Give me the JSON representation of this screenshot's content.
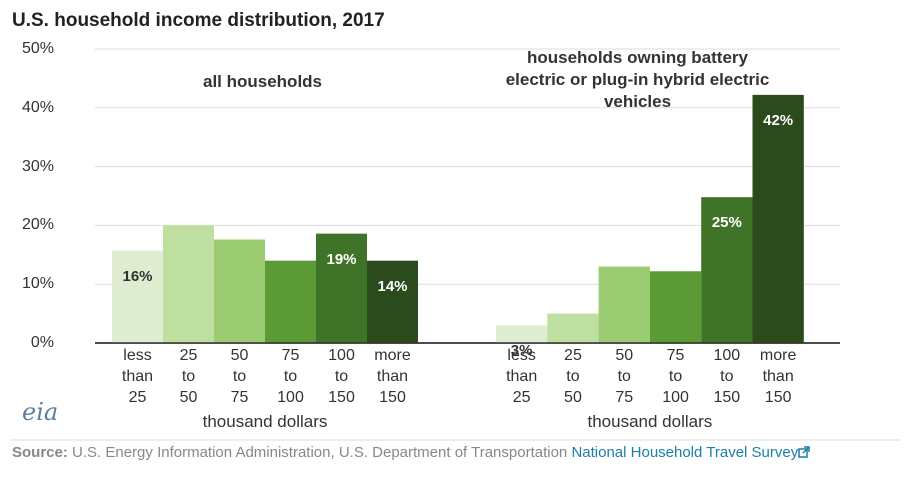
{
  "title": "U.S. household income distribution, 2017",
  "logo": "eia",
  "source": {
    "label": "Source:",
    "text": "U.S. Energy Information Administration, U.S. Department of Transportation",
    "link": "National Household Travel Survey"
  },
  "chart_data": [
    {
      "type": "bar",
      "subtitle": "all households",
      "x_label": "thousand dollars",
      "categories": [
        "less than 25",
        "25 to 50",
        "50 to 75",
        "75 to 100",
        "100 to 150",
        "more than 150"
      ],
      "values": [
        15.7,
        20,
        17.6,
        14,
        18.6,
        14
      ],
      "value_labels": [
        "16%",
        null,
        null,
        null,
        "19%",
        "14%"
      ],
      "colors": [
        "#deedcf",
        "#bfdfa0",
        "#9ccc71",
        "#5b9a35",
        "#3f7327",
        "#2b4b1c"
      ],
      "ylim": [
        0,
        50
      ],
      "yticks": [
        {
          "value": 0,
          "label": "0%"
        },
        {
          "value": 10,
          "label": "10%"
        },
        {
          "value": 20,
          "label": "20%"
        },
        {
          "value": 30,
          "label": "30%"
        },
        {
          "value": 40,
          "label": "40%"
        },
        {
          "value": 50,
          "label": "50%"
        }
      ],
      "grid": true
    },
    {
      "type": "bar",
      "subtitle": "households owning battery electric or plug-in hybrid electric vehicles",
      "x_label": "thousand dollars",
      "categories": [
        "less than 25",
        "25 to 50",
        "50 to 75",
        "75 to 100",
        "100 to 150",
        "more than 150"
      ],
      "values": [
        3,
        5,
        13,
        12.2,
        24.8,
        42.2
      ],
      "value_labels": [
        "3%",
        null,
        null,
        null,
        "25%",
        "42%"
      ],
      "colors": [
        "#deedcf",
        "#bfdfa0",
        "#9ccc71",
        "#5b9a35",
        "#3f7327",
        "#2b4b1c"
      ],
      "ylim": [
        0,
        50
      ]
    }
  ]
}
